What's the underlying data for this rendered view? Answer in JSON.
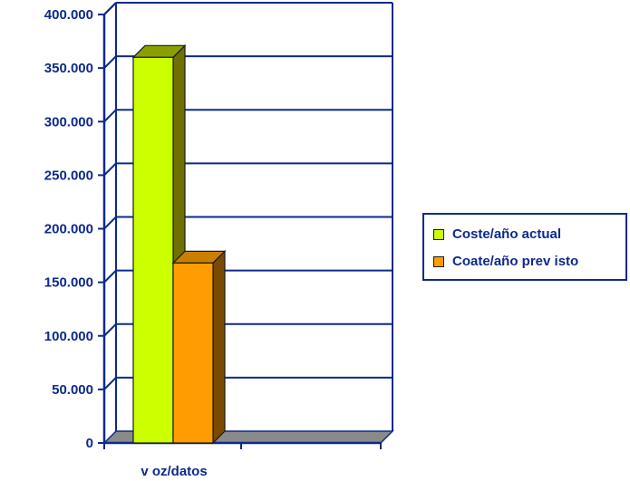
{
  "chart_data": {
    "type": "bar",
    "categories": [
      "v oz/datos"
    ],
    "series": [
      {
        "name": "Coste/año actual",
        "values": [
          360000
        ],
        "color": "#ccff00",
        "side_color": "#707000",
        "top_color": "#8aa000"
      },
      {
        "name": "Coate/año prev isto",
        "values": [
          168000
        ],
        "color": "#ff9d00",
        "side_color": "#7a4a00",
        "top_color": "#c98000"
      }
    ],
    "y_ticks": [
      "0",
      "50.000",
      "100.000",
      "150.000",
      "200.000",
      "250.000",
      "300.000",
      "350.000",
      "400.000"
    ],
    "ylim": [
      0,
      400000
    ],
    "grid": true,
    "legend_position": "right",
    "title": "",
    "xlabel": "",
    "ylabel": "",
    "colors": {
      "axis": "#0c2a8a",
      "floor": "#8a8a8a",
      "text": "#0c2a8a"
    }
  }
}
